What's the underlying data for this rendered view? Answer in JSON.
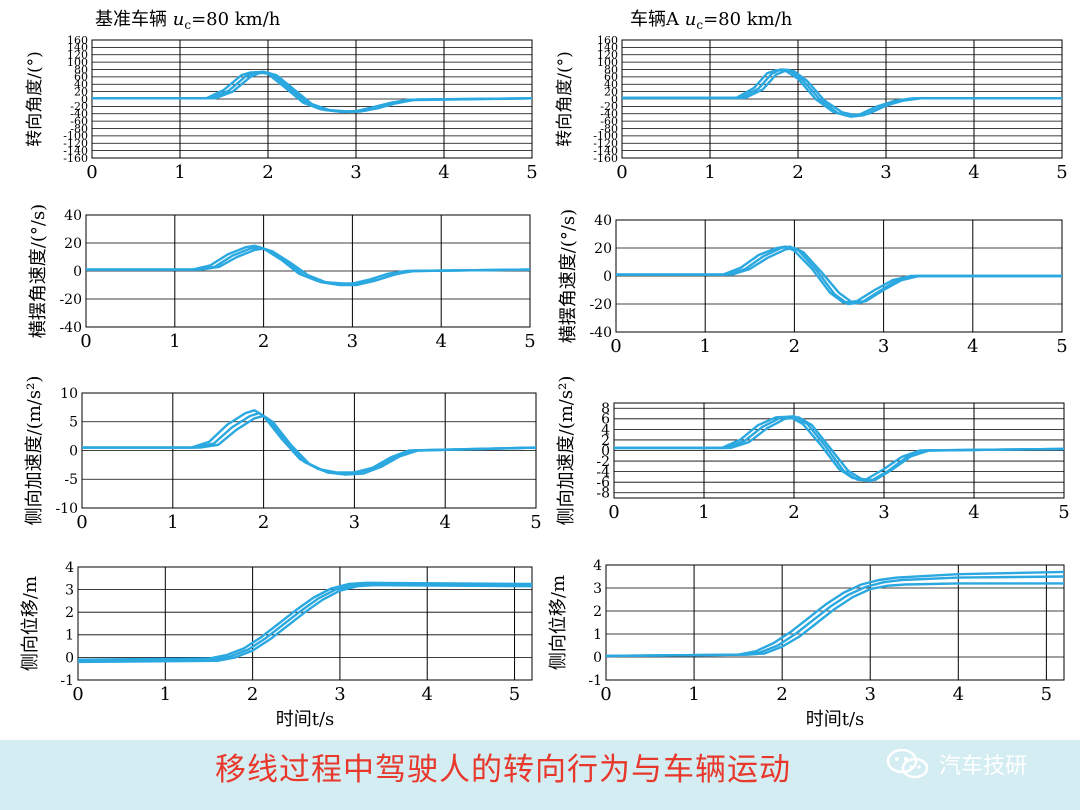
{
  "page": {
    "caption": "移线过程中驾驶人的转向行为与车辆运动",
    "watermark": "汽车技研",
    "watermark_icon": "wechat-icon"
  },
  "colors": {
    "series": "#2ba8e0",
    "accent": "#e8382c",
    "footer_bg": "#d4edf3"
  },
  "chart_data": [
    {
      "type": "line",
      "column_title": {
        "pre": "基准车辆 ",
        "var": "u",
        "sub": "c",
        "post": "=80 km/h"
      },
      "ylabel": "转向角度/(°)",
      "xlabel": "",
      "xlim": [
        0,
        5
      ],
      "ylim": [
        -160,
        160
      ],
      "yticks": [
        -160,
        -140,
        -120,
        -100,
        -80,
        -60,
        -40,
        -20,
        0,
        20,
        40,
        60,
        80,
        100,
        120,
        140,
        160
      ],
      "xticks": [
        0,
        1,
        2,
        3,
        4,
        5
      ],
      "grid": true,
      "series": [
        {
          "x": [
            0,
            1.3,
            1.5,
            1.7,
            1.8,
            1.9,
            2.0,
            2.2,
            2.4,
            2.6,
            2.8,
            3.0,
            3.2,
            3.4,
            3.6,
            5
          ],
          "y": [
            2,
            2,
            25,
            65,
            72,
            73,
            68,
            30,
            -10,
            -28,
            -34,
            -33,
            -22,
            -10,
            -2,
            2
          ]
        },
        {
          "x": [
            0,
            1.35,
            1.55,
            1.75,
            1.85,
            1.95,
            2.05,
            2.25,
            2.45,
            2.65,
            2.85,
            3.05,
            3.25,
            3.45,
            3.65,
            5
          ],
          "y": [
            2,
            2,
            22,
            62,
            72,
            74,
            67,
            28,
            -12,
            -30,
            -35,
            -34,
            -25,
            -12,
            -3,
            2
          ]
        },
        {
          "x": [
            0,
            1.4,
            1.6,
            1.8,
            1.9,
            2.0,
            2.1,
            2.3,
            2.5,
            2.7,
            2.9,
            3.1,
            3.3,
            3.5,
            3.7,
            5
          ],
          "y": [
            2,
            2,
            20,
            60,
            70,
            71,
            64,
            25,
            -14,
            -30,
            -34,
            -32,
            -20,
            -8,
            -1,
            2
          ]
        }
      ]
    },
    {
      "type": "line",
      "column_title": {
        "pre": "车辆A ",
        "var": "u",
        "sub": "c",
        "post": "=80 km/h"
      },
      "ylabel": "转向角度/(°)",
      "xlabel": "",
      "xlim": [
        0,
        5
      ],
      "ylim": [
        -160,
        160
      ],
      "yticks": [
        -160,
        -140,
        -120,
        -100,
        -80,
        -60,
        -40,
        -20,
        0,
        20,
        40,
        60,
        80,
        100,
        120,
        140,
        160
      ],
      "xticks": [
        0,
        1,
        2,
        3,
        4,
        5
      ],
      "grid": true,
      "series": [
        {
          "x": [
            0,
            1.3,
            1.5,
            1.65,
            1.75,
            1.85,
            2.0,
            2.2,
            2.4,
            2.55,
            2.7,
            2.9,
            3.1,
            3.3,
            5
          ],
          "y": [
            3,
            3,
            30,
            70,
            78,
            78,
            55,
            0,
            -35,
            -45,
            -42,
            -20,
            -5,
            2,
            2
          ]
        },
        {
          "x": [
            0,
            1.35,
            1.55,
            1.7,
            1.8,
            1.9,
            2.05,
            2.25,
            2.45,
            2.6,
            2.75,
            2.95,
            3.15,
            3.35,
            5
          ],
          "y": [
            3,
            3,
            28,
            68,
            80,
            79,
            52,
            -2,
            -38,
            -48,
            -44,
            -22,
            -6,
            2,
            2
          ]
        },
        {
          "x": [
            0,
            1.4,
            1.6,
            1.75,
            1.85,
            1.95,
            2.1,
            2.3,
            2.5,
            2.65,
            2.8,
            3.0,
            3.2,
            3.4,
            5
          ],
          "y": [
            3,
            3,
            26,
            66,
            76,
            76,
            50,
            -4,
            -36,
            -44,
            -40,
            -18,
            -4,
            2,
            2
          ]
        }
      ]
    },
    {
      "type": "line",
      "ylabel": "横摆角速度/(°/s)",
      "xlabel": "",
      "xlim": [
        0,
        5
      ],
      "ylim": [
        -40,
        40
      ],
      "yticks": [
        -40,
        -20,
        0,
        20,
        40
      ],
      "xticks": [
        0,
        1,
        2,
        3,
        4,
        5
      ],
      "grid": true,
      "series": [
        {
          "x": [
            0,
            1.2,
            1.4,
            1.6,
            1.8,
            1.9,
            2.0,
            2.2,
            2.4,
            2.6,
            2.8,
            3.0,
            3.2,
            3.4,
            3.6,
            5
          ],
          "y": [
            1,
            1,
            4,
            12,
            17,
            18,
            16,
            8,
            -2,
            -7,
            -9,
            -9,
            -6,
            -2,
            0,
            1
          ]
        },
        {
          "x": [
            0,
            1.25,
            1.45,
            1.65,
            1.85,
            1.95,
            2.05,
            2.25,
            2.45,
            2.65,
            2.85,
            3.05,
            3.25,
            3.45,
            3.65,
            5
          ],
          "y": [
            1,
            1,
            3,
            11,
            16,
            17,
            15,
            7,
            -3,
            -8,
            -10,
            -10,
            -7,
            -3,
            0,
            1
          ]
        },
        {
          "x": [
            0,
            1.3,
            1.5,
            1.7,
            1.9,
            2.0,
            2.1,
            2.3,
            2.5,
            2.7,
            2.9,
            3.1,
            3.3,
            3.5,
            3.7,
            5
          ],
          "y": [
            1,
            1,
            3,
            10,
            15,
            16,
            14,
            6,
            -3,
            -8,
            -9,
            -9,
            -6,
            -2,
            0,
            1
          ]
        }
      ]
    },
    {
      "type": "line",
      "ylabel": "横摆角速度/(°/s)",
      "xlabel": "",
      "xlim": [
        0,
        5
      ],
      "ylim": [
        -40,
        40
      ],
      "yticks": [
        -40,
        -20,
        0,
        20,
        40
      ],
      "xticks": [
        0,
        1,
        2,
        3,
        4,
        5
      ],
      "grid": true,
      "series": [
        {
          "x": [
            0,
            1.2,
            1.4,
            1.6,
            1.8,
            1.9,
            2.0,
            2.2,
            2.4,
            2.55,
            2.7,
            2.9,
            3.1,
            3.3,
            5
          ],
          "y": [
            1,
            1,
            6,
            15,
            20,
            21,
            18,
            5,
            -12,
            -19,
            -18,
            -10,
            -3,
            0,
            0
          ]
        },
        {
          "x": [
            0,
            1.25,
            1.45,
            1.65,
            1.85,
            1.95,
            2.05,
            2.25,
            2.45,
            2.6,
            2.75,
            2.95,
            3.15,
            3.35,
            5
          ],
          "y": [
            1,
            1,
            5,
            14,
            20,
            21,
            18,
            4,
            -13,
            -20,
            -19,
            -11,
            -3,
            0,
            0
          ]
        },
        {
          "x": [
            0,
            1.3,
            1.5,
            1.7,
            1.9,
            2.0,
            2.1,
            2.3,
            2.5,
            2.65,
            2.8,
            3.0,
            3.2,
            3.4,
            5
          ],
          "y": [
            1,
            1,
            5,
            13,
            19,
            20,
            17,
            3,
            -12,
            -19,
            -18,
            -10,
            -3,
            0,
            0
          ]
        }
      ]
    },
    {
      "type": "line",
      "ylabel": "侧向加速度/(m/s²)",
      "xlabel": "",
      "xlim": [
        0,
        5
      ],
      "ylim": [
        -10,
        10
      ],
      "yticks": [
        -10,
        -5,
        0,
        5,
        10
      ],
      "xticks": [
        0,
        1,
        2,
        3,
        4,
        5
      ],
      "grid": true,
      "series": [
        {
          "x": [
            0,
            1.2,
            1.4,
            1.6,
            1.8,
            1.9,
            2.0,
            2.2,
            2.4,
            2.6,
            2.8,
            3.0,
            3.2,
            3.4,
            3.6,
            5
          ],
          "y": [
            0.5,
            0.5,
            1.5,
            4.5,
            6.5,
            7,
            6,
            2,
            -1.5,
            -3.2,
            -3.8,
            -3.8,
            -3,
            -1.2,
            0,
            0.5
          ]
        },
        {
          "x": [
            0,
            1.25,
            1.45,
            1.65,
            1.85,
            1.95,
            2.05,
            2.25,
            2.45,
            2.65,
            2.85,
            3.05,
            3.25,
            3.45,
            3.65,
            5
          ],
          "y": [
            0.5,
            0.5,
            1.2,
            4,
            6,
            6.5,
            5.5,
            1.5,
            -2,
            -3.5,
            -4,
            -3.8,
            -2.8,
            -1,
            0,
            0.5
          ]
        },
        {
          "x": [
            0,
            1.3,
            1.5,
            1.7,
            1.9,
            2.0,
            2.1,
            2.3,
            2.5,
            2.7,
            2.9,
            3.1,
            3.3,
            3.5,
            3.7,
            5
          ],
          "y": [
            0.5,
            0.5,
            1,
            3.6,
            5.6,
            6,
            5,
            1,
            -2.3,
            -3.8,
            -4.2,
            -4,
            -2.8,
            -1,
            0,
            0.5
          ]
        }
      ]
    },
    {
      "type": "line",
      "ylabel": "侧向加速度/(m/s²)",
      "xlabel": "",
      "xlim": [
        0,
        5
      ],
      "ylim": [
        -9,
        9
      ],
      "yticks": [
        -8,
        -6,
        -4,
        -2,
        0,
        2,
        4,
        6,
        8
      ],
      "xticks": [
        0,
        1,
        2,
        3,
        4,
        5
      ],
      "grid": true,
      "series": [
        {
          "x": [
            0,
            1.2,
            1.4,
            1.6,
            1.8,
            1.95,
            2.1,
            2.3,
            2.5,
            2.65,
            2.8,
            3.0,
            3.2,
            3.4,
            5
          ],
          "y": [
            0.5,
            0.5,
            2,
            4.8,
            6.3,
            6.4,
            5,
            1,
            -3.5,
            -5.2,
            -5.5,
            -3.5,
            -1.2,
            0,
            0.3
          ]
        },
        {
          "x": [
            0,
            1.25,
            1.45,
            1.65,
            1.85,
            2.0,
            2.15,
            2.35,
            2.55,
            2.7,
            2.85,
            3.05,
            3.25,
            3.45,
            5
          ],
          "y": [
            0.5,
            0.5,
            1.8,
            4.5,
            6.2,
            6.5,
            5,
            0.8,
            -3.8,
            -5.5,
            -5.8,
            -3.8,
            -1.3,
            0,
            0.3
          ]
        },
        {
          "x": [
            0,
            1.3,
            1.5,
            1.7,
            1.9,
            2.05,
            2.2,
            2.4,
            2.6,
            2.75,
            2.9,
            3.1,
            3.3,
            3.5,
            5
          ],
          "y": [
            0.5,
            0.5,
            1.6,
            4.2,
            6,
            6.3,
            4.8,
            0.5,
            -3.8,
            -5.4,
            -5.6,
            -3.5,
            -1.1,
            0,
            0.3
          ]
        }
      ]
    },
    {
      "type": "line",
      "ylabel": "侧向位移/m",
      "xlabel": "时间t/s",
      "xlim": [
        0,
        5.2
      ],
      "ylim": [
        -1,
        4
      ],
      "yticks": [
        -1,
        0,
        1,
        2,
        3,
        4
      ],
      "xticks": [
        0,
        1,
        2,
        3,
        4,
        5
      ],
      "grid": true,
      "series": [
        {
          "x": [
            0,
            1.5,
            1.7,
            1.9,
            2.1,
            2.3,
            2.5,
            2.7,
            2.9,
            3.1,
            3.3,
            5.2
          ],
          "y": [
            -0.1,
            -0.05,
            0.1,
            0.4,
            0.9,
            1.5,
            2.1,
            2.65,
            3.05,
            3.25,
            3.3,
            3.25
          ]
        },
        {
          "x": [
            0,
            1.55,
            1.75,
            1.95,
            2.15,
            2.35,
            2.55,
            2.75,
            2.95,
            3.15,
            3.35,
            5.2
          ],
          "y": [
            -0.15,
            -0.1,
            0.05,
            0.35,
            0.85,
            1.45,
            2.05,
            2.6,
            3.0,
            3.2,
            3.25,
            3.2
          ]
        },
        {
          "x": [
            0,
            1.6,
            1.8,
            2.0,
            2.2,
            2.4,
            2.6,
            2.8,
            3.0,
            3.2,
            3.4,
            5.2
          ],
          "y": [
            -0.2,
            -0.15,
            0.0,
            0.3,
            0.8,
            1.4,
            2.0,
            2.55,
            2.95,
            3.15,
            3.2,
            3.15
          ]
        }
      ]
    },
    {
      "type": "line",
      "ylabel": "侧向位移/m",
      "xlabel": "时间t/s",
      "xlim": [
        0,
        5.2
      ],
      "ylim": [
        -1,
        4
      ],
      "yticks": [
        -1,
        0,
        1,
        2,
        3,
        4
      ],
      "xticks": [
        0,
        1,
        2,
        3,
        4,
        5
      ],
      "grid": true,
      "series": [
        {
          "x": [
            0,
            1.5,
            1.7,
            1.9,
            2.1,
            2.3,
            2.5,
            2.7,
            2.9,
            3.1,
            3.3,
            4,
            5.2
          ],
          "y": [
            0.05,
            0.1,
            0.25,
            0.6,
            1.1,
            1.7,
            2.3,
            2.8,
            3.15,
            3.35,
            3.45,
            3.6,
            3.7
          ]
        },
        {
          "x": [
            0,
            1.55,
            1.75,
            1.95,
            2.15,
            2.35,
            2.55,
            2.75,
            2.95,
            3.15,
            3.35,
            4,
            5.2
          ],
          "y": [
            0.05,
            0.1,
            0.2,
            0.5,
            1.0,
            1.6,
            2.2,
            2.7,
            3.05,
            3.25,
            3.35,
            3.45,
            3.5
          ]
        },
        {
          "x": [
            0,
            1.6,
            1.8,
            2.0,
            2.2,
            2.4,
            2.6,
            2.8,
            3.0,
            3.2,
            3.4,
            4,
            5.2
          ],
          "y": [
            0.05,
            0.1,
            0.15,
            0.45,
            0.9,
            1.5,
            2.1,
            2.6,
            2.95,
            3.1,
            3.15,
            3.2,
            3.2
          ]
        }
      ]
    }
  ]
}
